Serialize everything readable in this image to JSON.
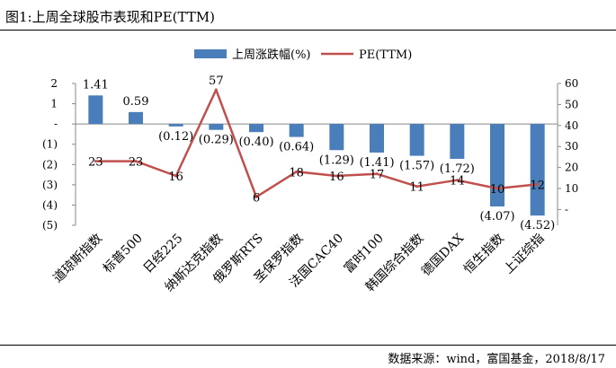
{
  "figure": {
    "title": "图1:上周全球股市表现和PE(TTM)",
    "source": "数据来源：wind，富国基金，2018/8/17"
  },
  "chart_data": {
    "type": "bar",
    "categories": [
      "道琼斯指数",
      "标普500",
      "日经225",
      "纳斯达克指数",
      "俄罗斯RTS",
      "圣保罗指数",
      "法国CAC40",
      "富时100",
      "韩国综合指数",
      "德国DAX",
      "恒生指数",
      "上证综指"
    ],
    "series": [
      {
        "name": "上周涨跌幅(%)",
        "type": "bar",
        "axis": "left",
        "color": "#4A7EBB",
        "values": [
          1.41,
          0.59,
          -0.12,
          -0.29,
          -0.4,
          -0.64,
          -1.29,
          -1.41,
          -1.57,
          -1.72,
          -4.07,
          -4.52
        ],
        "labels": [
          "1.41",
          "0.59",
          "(0.12)",
          "(0.29)",
          "(0.40)",
          "(0.64)",
          "(1.29)",
          "(1.41)",
          "(1.57)",
          "(1.72)",
          "(4.07)",
          "(4.52)"
        ]
      },
      {
        "name": "PE(TTM)",
        "type": "line",
        "axis": "right",
        "color": "#C0504D",
        "values": [
          23,
          23,
          16,
          57,
          6,
          18,
          16,
          17,
          11,
          14,
          10,
          12
        ],
        "labels": [
          "23",
          "23",
          "16",
          "57",
          "6",
          "18",
          "16",
          "17",
          "11",
          "14",
          "10",
          "12"
        ]
      }
    ],
    "y_left": {
      "ylim": [
        -5,
        2
      ],
      "ticks": [
        2,
        1,
        0,
        -1,
        -2,
        -3,
        -4,
        -5
      ],
      "tick_labels": [
        "2",
        "1",
        "-",
        "(1)",
        "(2)",
        "(3)",
        "(4)",
        "(5)"
      ]
    },
    "y_right": {
      "ylim": [
        -7.5,
        60
      ],
      "ticks": [
        60,
        50,
        40,
        30,
        20,
        10,
        0
      ],
      "tick_labels": [
        "60",
        "50",
        "40",
        "30",
        "20",
        "10",
        "-"
      ]
    },
    "legend_position": "top-center",
    "grid": false
  }
}
